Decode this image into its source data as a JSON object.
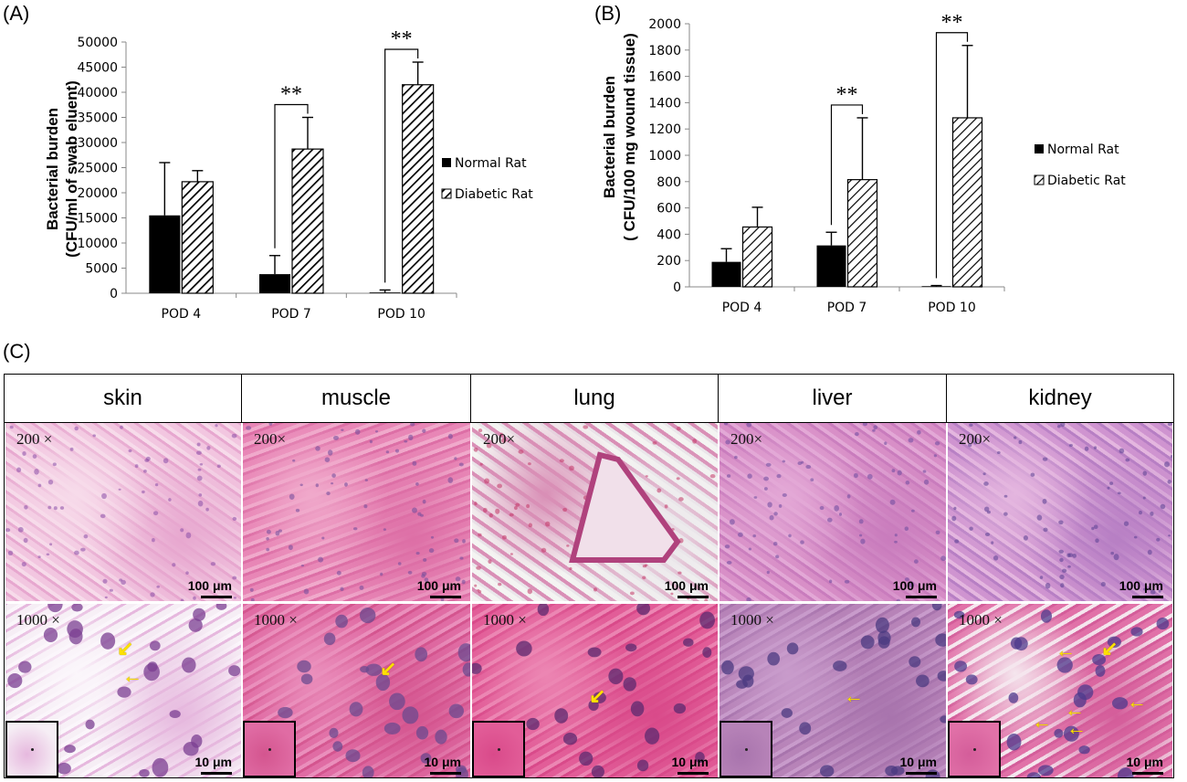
{
  "panels": {
    "a": "(A)",
    "b": "(B)",
    "c": "(C)"
  },
  "colors": {
    "normal": "#000000",
    "diabetic_hatch": "#000000",
    "he_pink": "#e07aa8",
    "he_purple": "#7a4a9c",
    "arrow": "#ffe100"
  },
  "chart_data": [
    {
      "type": "bar",
      "ylabel": [
        "Bacterial burden",
        "(CFU/ml of swab eluent)"
      ],
      "categories": [
        "POD 4",
        "POD 7",
        "POD 10"
      ],
      "ylim": [
        0,
        50000
      ],
      "yticks": [
        0,
        5000,
        10000,
        15000,
        20000,
        25000,
        30000,
        35000,
        40000,
        45000,
        50000
      ],
      "series": [
        {
          "name": "Normal Rat",
          "values": [
            15500,
            3800,
            150
          ],
          "errors": [
            10500,
            3700,
            500
          ]
        },
        {
          "name": "Diabetic Rat",
          "values": [
            22200,
            28700,
            41500
          ],
          "errors": [
            2200,
            6300,
            4500
          ]
        }
      ],
      "significance": [
        {
          "category": "POD 7",
          "label": "**"
        },
        {
          "category": "POD 10",
          "label": "**"
        }
      ],
      "legend_position": "right"
    },
    {
      "type": "bar",
      "ylabel": [
        "Bacterial burden",
        "( CFU/100 mg wound tissue)"
      ],
      "categories": [
        "POD 4",
        "POD 7",
        "POD 10"
      ],
      "ylim": [
        0,
        2000
      ],
      "yticks": [
        0,
        200,
        400,
        600,
        800,
        1000,
        1200,
        1400,
        1600,
        1800,
        2000
      ],
      "series": [
        {
          "name": "Normal Rat",
          "values": [
            190,
            315,
            5
          ],
          "errors": [
            100,
            100,
            5
          ]
        },
        {
          "name": "Diabetic Rat",
          "values": [
            455,
            815,
            1285
          ],
          "errors": [
            150,
            470,
            550
          ]
        }
      ],
      "significance": [
        {
          "category": "POD 7",
          "label": "**"
        },
        {
          "category": "POD 10",
          "label": "**"
        }
      ],
      "legend_position": "right"
    }
  ],
  "histology": {
    "columns": [
      "skin",
      "muscle",
      "lung",
      "liver",
      "kidney"
    ],
    "low_mag": "200×",
    "low_mag_skin": "200  ×",
    "high_mag": "1000 ×",
    "low_scale": "100 μm",
    "high_scale": "10 μm"
  }
}
